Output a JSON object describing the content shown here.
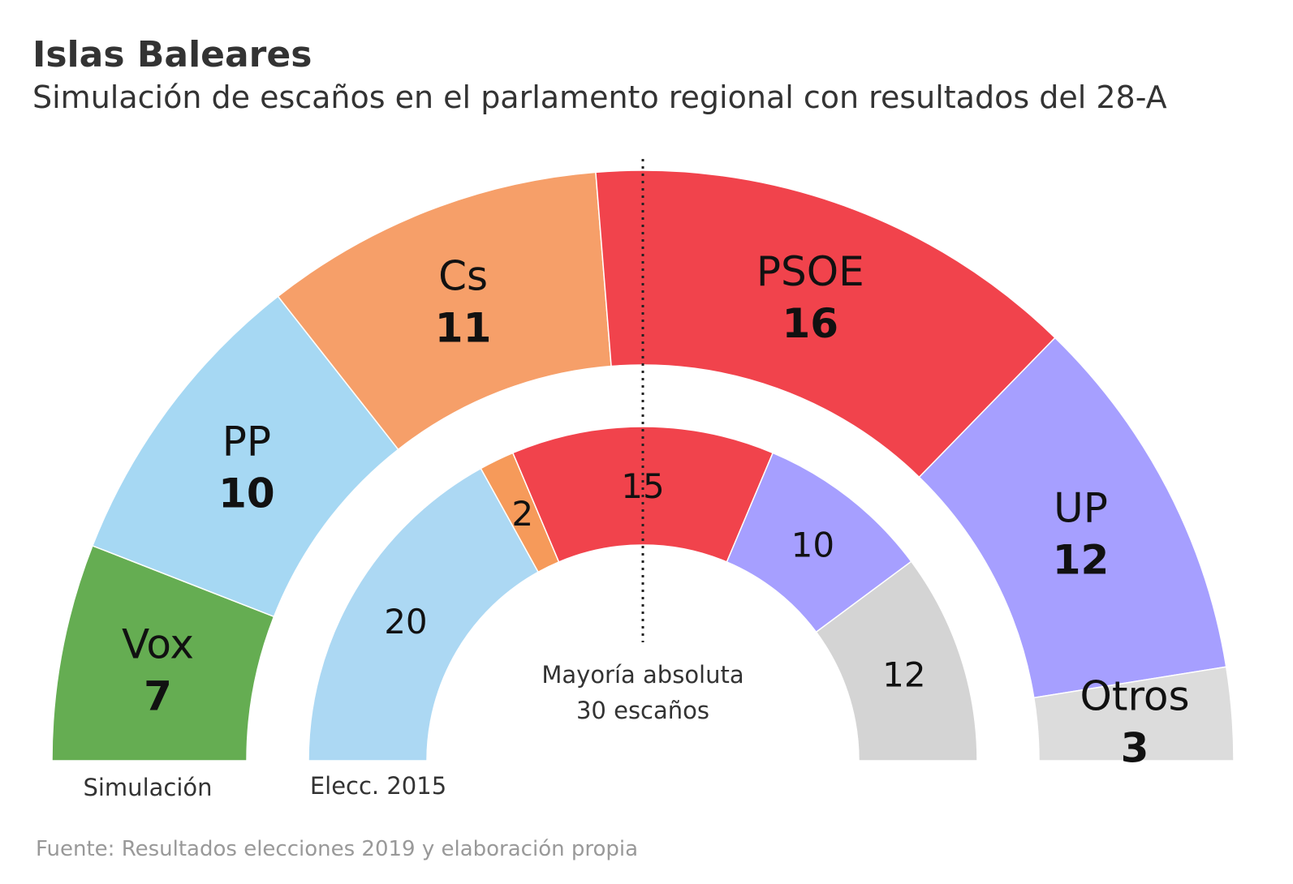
{
  "chart_data": {
    "type": "parliament",
    "title": "Islas Baleares",
    "subtitle": "Simulación de escaños en el parlamento regional con resultados del 28-A",
    "total_seats": 59,
    "majority": {
      "label_line1": "Mayoría absoluta",
      "label_line2": "30 escaños",
      "seats": 30
    },
    "rings": [
      {
        "name": "Simulación",
        "position": "outer",
        "series": [
          {
            "party": "Vox",
            "seats": 7,
            "display": "7",
            "color": "#65ad52"
          },
          {
            "party": "PP",
            "seats": 10,
            "display": "10",
            "color": "#a6d8f3"
          },
          {
            "party": "Cs",
            "seats": 11,
            "display": "11",
            "color": "#f69f69"
          },
          {
            "party": "PSOE",
            "seats": 16,
            "display": "16",
            "color": "#f1434c"
          },
          {
            "party": "UP",
            "seats": 12,
            "display": "12",
            "color": "#a69fff"
          },
          {
            "party": "Otros",
            "seats": 3,
            "display": "3",
            "color": "#dcdcdc"
          }
        ]
      },
      {
        "name": "Elecc. 2015",
        "position": "inner",
        "series": [
          {
            "party": "PP",
            "seats": 20,
            "display": "20",
            "color": "#acd8f3"
          },
          {
            "party": "Cs",
            "seats": 2,
            "display": "2",
            "color": "#f69a5a"
          },
          {
            "party": "PSOE",
            "seats": 15,
            "display": "15",
            "color": "#f1434c"
          },
          {
            "party": "UP",
            "seats": 10,
            "display": "10",
            "color": "#a69fff"
          },
          {
            "party": "Otros",
            "seats": 12,
            "display": "12",
            "color": "#d4d4d4"
          }
        ]
      }
    ],
    "source": "Fuente: Resultados elecciones 2019 y elaboración propia"
  }
}
